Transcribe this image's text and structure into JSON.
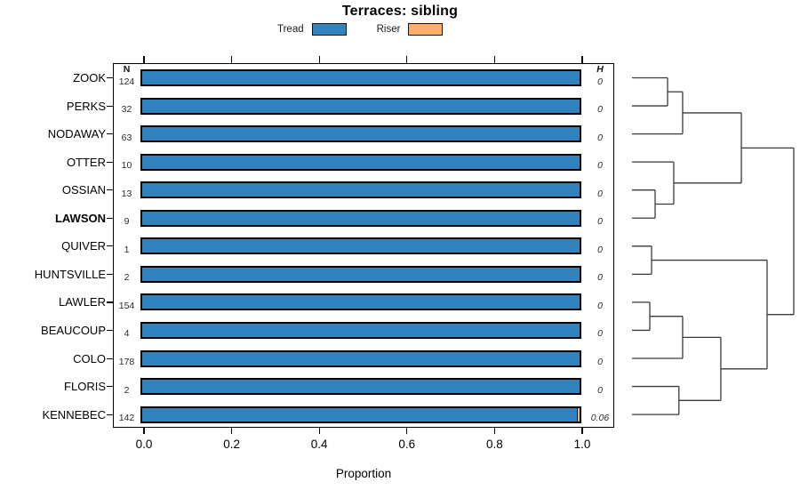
{
  "chart_data": {
    "type": "bar",
    "orientation": "horizontal-stacked",
    "title": "Terraces: sibling",
    "xlabel": "Proportion",
    "xlim": [
      0,
      1
    ],
    "x_ticks": [
      0.0,
      0.2,
      0.4,
      0.6,
      0.8,
      1.0
    ],
    "x_tick_labels": [
      "0.0",
      "0.2",
      "0.4",
      "0.6",
      "0.8",
      "1.0"
    ],
    "grid": false,
    "legend_position": "top",
    "legend": [
      {
        "label": "Tread",
        "color": "#3182BD"
      },
      {
        "label": "Riser",
        "color": "#FDAE6B"
      }
    ],
    "columns": {
      "n_header": "N",
      "h_header": "H"
    },
    "rows": [
      {
        "name": "ZOOK",
        "n": "124",
        "h": "0",
        "tread": 1.0,
        "riser": 0,
        "bold": false
      },
      {
        "name": "PERKS",
        "n": "32",
        "h": "0",
        "tread": 1.0,
        "riser": 0,
        "bold": false
      },
      {
        "name": "NODAWAY",
        "n": "63",
        "h": "0",
        "tread": 1.0,
        "riser": 0,
        "bold": false
      },
      {
        "name": "OTTER",
        "n": "10",
        "h": "0",
        "tread": 1.0,
        "riser": 0,
        "bold": false
      },
      {
        "name": "OSSIAN",
        "n": "13",
        "h": "0",
        "tread": 1.0,
        "riser": 0,
        "bold": false
      },
      {
        "name": "LAWSON",
        "n": "9",
        "h": "0",
        "tread": 1.0,
        "riser": 0,
        "bold": true
      },
      {
        "name": "QUIVER",
        "n": "1",
        "h": "0",
        "tread": 1.0,
        "riser": 0,
        "bold": false
      },
      {
        "name": "HUNTSVILLE",
        "n": "2",
        "h": "0",
        "tread": 1.0,
        "riser": 0,
        "bold": false
      },
      {
        "name": "LAWLER",
        "n": "154",
        "h": "0",
        "tread": 1.0,
        "riser": 0,
        "bold": false
      },
      {
        "name": "BEAUCOUP",
        "n": "4",
        "h": "0",
        "tread": 1.0,
        "riser": 0,
        "bold": false
      },
      {
        "name": "COLO",
        "n": "178",
        "h": "0",
        "tread": 1.0,
        "riser": 0,
        "bold": false
      },
      {
        "name": "FLORIS",
        "n": "2",
        "h": "0",
        "tread": 1.0,
        "riser": 0,
        "bold": false
      },
      {
        "name": "KENNEBEC",
        "n": "142",
        "h": "0.06",
        "tread": 0.993,
        "riser": 0.007,
        "bold": false
      }
    ],
    "colors": {
      "tread": "#3182BD",
      "riser": "#FDAE6B",
      "bar_border": "#000000",
      "dendrogram_line": "#3a3a3a"
    },
    "dendrogram": {
      "d": 1.0,
      "children": [
        {
          "d": 0.676,
          "children": [
            {
              "d": 0.313,
              "children": [
                {
                  "d": 0.22,
                  "children": [
                    "ZOOK",
                    "PERKS"
                  ]
                },
                "NODAWAY"
              ]
            },
            {
              "d": 0.258,
              "children": [
                "OTTER",
                {
                  "d": 0.143,
                  "children": [
                    "OSSIAN",
                    "LAWSON"
                  ]
                }
              ]
            }
          ]
        },
        {
          "d": 0.835,
          "children": [
            {
              "d": 0.121,
              "children": [
                "QUIVER",
                "HUNTSVILLE"
              ]
            },
            {
              "d": 0.549,
              "children": [
                {
                  "d": 0.313,
                  "children": [
                    {
                      "d": 0.11,
                      "children": [
                        "LAWLER",
                        "BEAUCOUP"
                      ]
                    },
                    "COLO"
                  ]
                },
                {
                  "d": 0.29,
                  "children": [
                    "FLORIS",
                    "KENNEBEC"
                  ]
                }
              ]
            }
          ]
        }
      ]
    }
  }
}
